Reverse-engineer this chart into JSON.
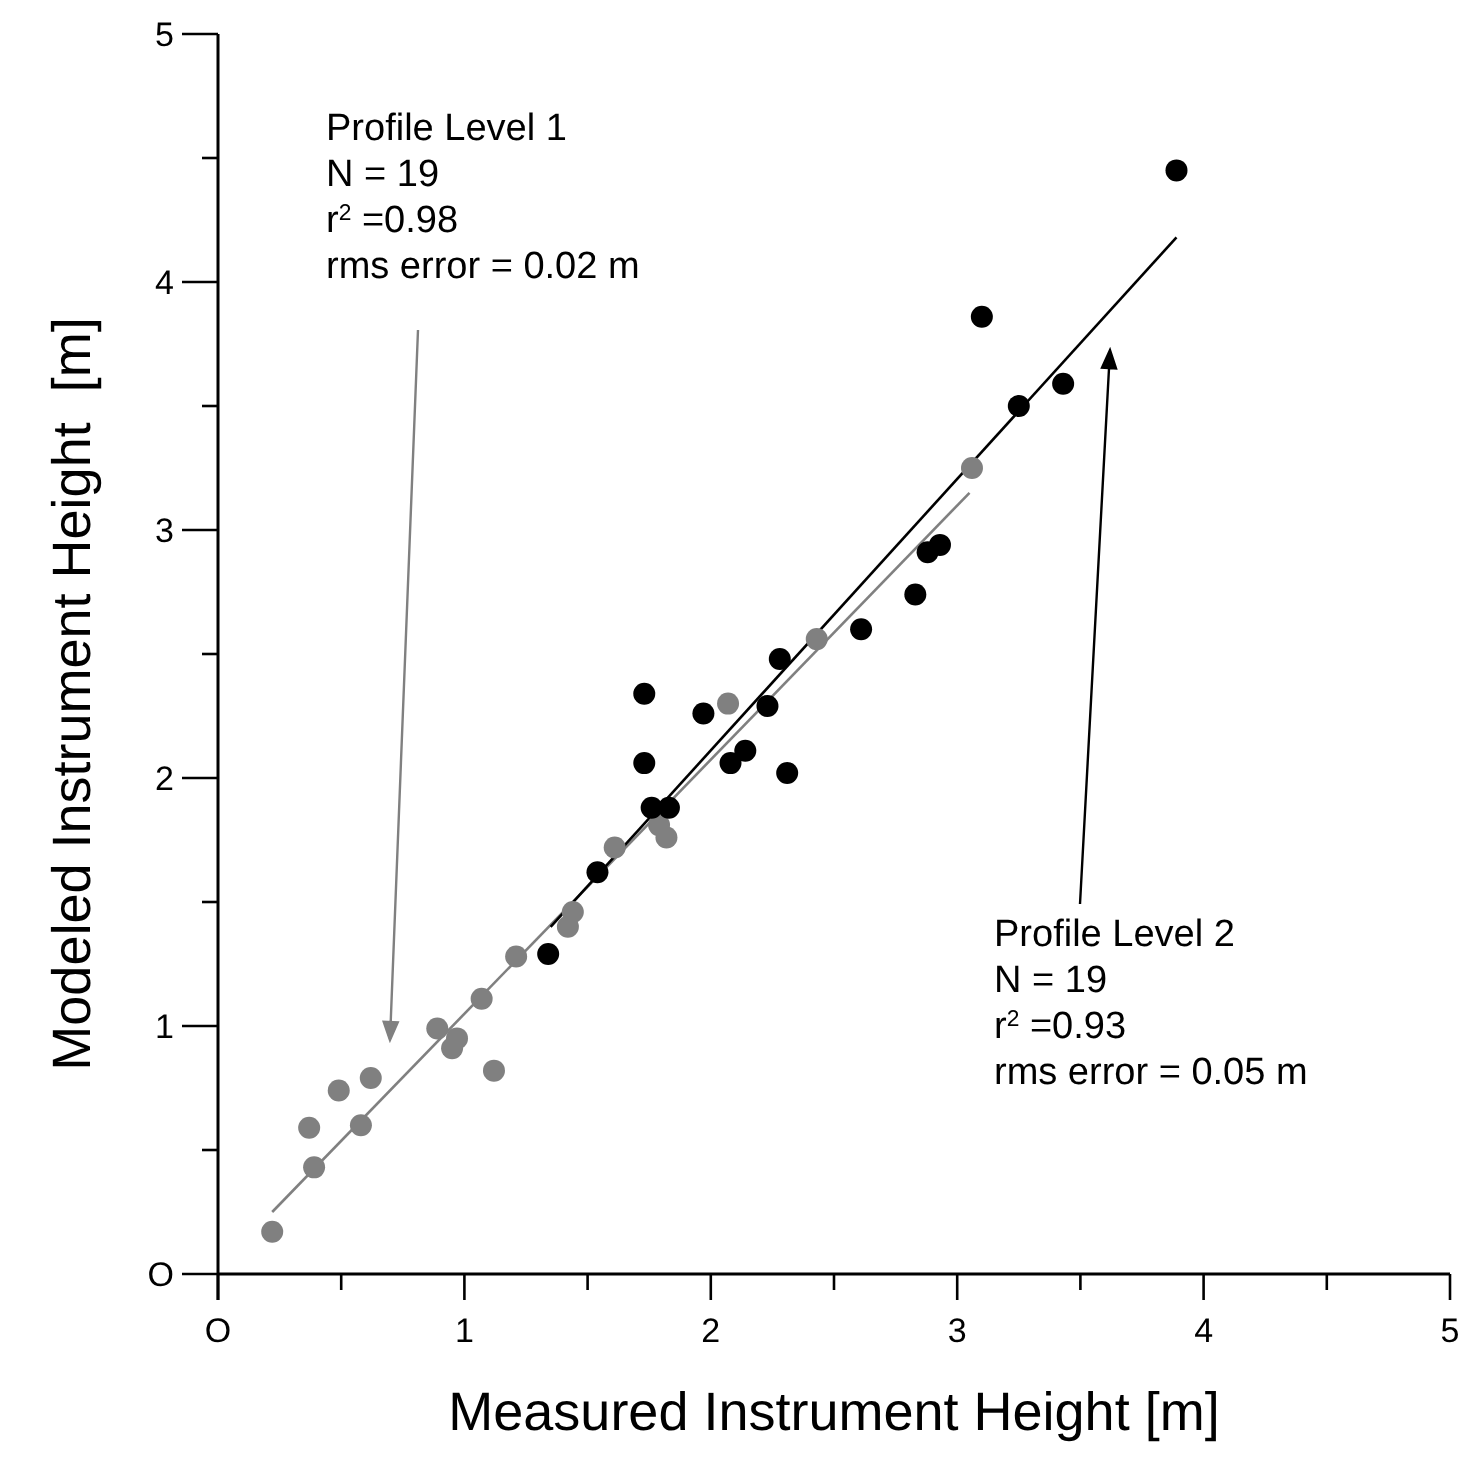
{
  "chart_data": {
    "type": "scatter",
    "xlabel": "Measured Instrument Height [m]",
    "ylabel": "Modeled Instrument Height  [m]",
    "xlim": [
      0,
      5
    ],
    "ylim": [
      0,
      5
    ],
    "xticks": [
      {
        "value": 0,
        "label": "O"
      },
      {
        "value": 0.5,
        "label": null
      },
      1,
      {
        "value": 1.5,
        "label": null
      },
      2,
      {
        "value": 2.5,
        "label": null
      },
      3,
      {
        "value": 3.5,
        "label": null
      },
      4,
      {
        "value": 4.5,
        "label": null
      },
      5
    ],
    "yticks": [
      {
        "value": 0,
        "label": "O"
      },
      {
        "value": 0.5,
        "label": null
      },
      1,
      {
        "value": 1.5,
        "label": null
      },
      2,
      {
        "value": 2.5,
        "label": null
      },
      3,
      {
        "value": 3.5,
        "label": null
      },
      4,
      {
        "value": 4.5,
        "label": null
      },
      5
    ],
    "grid": false,
    "marker": "circle",
    "series": [
      {
        "color": "#808080",
        "x": [
          0.22,
          0.39,
          0.37,
          0.49,
          0.58,
          0.62,
          0.89,
          0.97,
          0.95,
          1.07,
          1.12,
          1.21,
          1.42,
          1.44,
          1.61,
          1.79,
          1.82,
          2.07,
          2.43,
          3.06
        ],
        "values": [
          0.17,
          0.43,
          0.59,
          0.74,
          0.6,
          0.79,
          0.99,
          0.95,
          0.91,
          1.11,
          0.82,
          1.28,
          1.4,
          1.46,
          1.72,
          1.81,
          1.76,
          2.3,
          2.56,
          3.25
        ]
      },
      {
        "color": "#000000",
        "x": [
          1.34,
          1.54,
          1.76,
          1.83,
          1.73,
          1.73,
          1.97,
          2.08,
          2.14,
          2.23,
          2.28,
          2.31,
          2.61,
          2.83,
          2.88,
          2.93,
          3.25,
          3.43,
          3.1,
          3.89
        ],
        "values": [
          1.29,
          1.62,
          1.88,
          1.88,
          2.06,
          2.34,
          2.26,
          2.06,
          2.11,
          2.29,
          2.48,
          2.02,
          2.6,
          2.74,
          2.91,
          2.94,
          3.5,
          3.59,
          3.86,
          4.45
        ]
      },
      {
        "type": "line",
        "marker": "none",
        "color": "#808080",
        "x": [
          0.22,
          3.05
        ],
        "values": [
          0.25,
          3.15
        ]
      },
      {
        "type": "line",
        "marker": "none",
        "color": "#000000",
        "x": [
          1.35,
          3.89
        ],
        "values": [
          1.4,
          4.18
        ]
      }
    ],
    "annotations": [
      "Profile Level 1\nN = 19\nr$^{2}$ =0.98\nrms error = 0.02 m",
      "Profile Level 2\nN = 19\nr$^{2}$ =0.93\nrms error = 0.05 m"
    ]
  }
}
